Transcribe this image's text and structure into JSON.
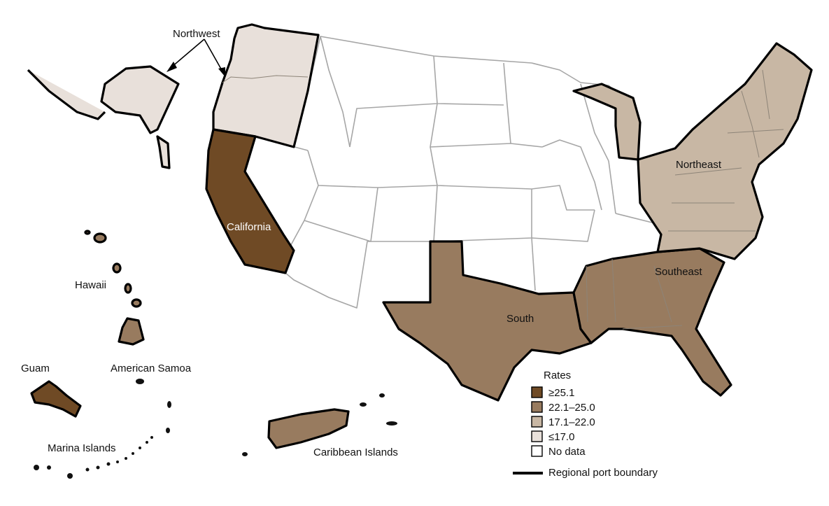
{
  "colors": {
    "rate_high": "#6f4a25",
    "rate_mid_high": "#987b5f",
    "rate_mid": "#c8b7a4",
    "rate_low": "#e8e0da",
    "no_data": "#ffffff",
    "boundary": "#000000",
    "state_border": "#a6a6a6"
  },
  "regions": [
    {
      "name": "Northwest",
      "rate_class": "rate_low"
    },
    {
      "name": "California",
      "rate_class": "rate_high"
    },
    {
      "name": "South",
      "rate_class": "rate_mid_high"
    },
    {
      "name": "Southeast",
      "rate_class": "rate_mid_high"
    },
    {
      "name": "Northeast",
      "rate_class": "rate_mid"
    },
    {
      "name": "Hawaii",
      "rate_class": "rate_mid_high"
    },
    {
      "name": "Guam",
      "rate_class": "rate_high"
    },
    {
      "name": "American Samoa",
      "rate_class": "no_data"
    },
    {
      "name": "Marina Islands",
      "rate_class": "no_data"
    },
    {
      "name": "Caribbean Islands",
      "rate_class": "rate_mid_high"
    }
  ],
  "legend": {
    "title": "Rates",
    "items": [
      {
        "label": "≥25.1",
        "color_key": "rate_high"
      },
      {
        "label": "22.1–25.0",
        "color_key": "rate_mid_high"
      },
      {
        "label": "17.1–22.0",
        "color_key": "rate_mid"
      },
      {
        "label": "≤17.0",
        "color_key": "rate_low"
      },
      {
        "label": "No data",
        "color_key": "no_data"
      }
    ],
    "boundary_label": "Regional port boundary"
  }
}
